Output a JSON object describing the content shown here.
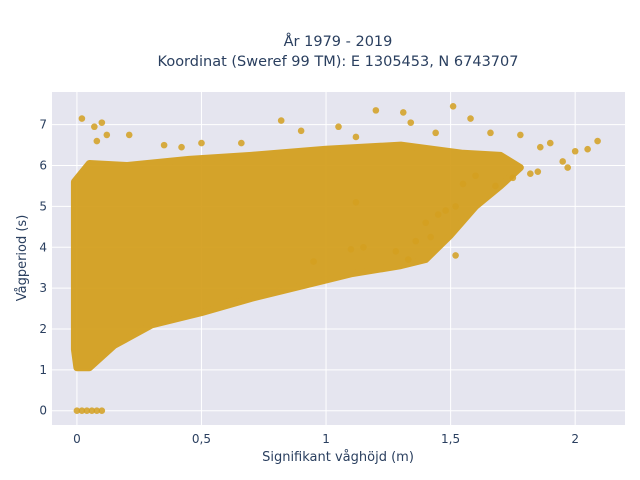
{
  "chart_data": {
    "type": "scatter",
    "title": "År 1979 - 2019",
    "subtitle": "Koordinat (Sweref 99 TM): E 1305453, N 6743707",
    "xlabel": "Signifikant våghöjd (m)",
    "ylabel": "Vågperiod (s)",
    "xlim": [
      -0.1,
      2.2
    ],
    "ylim": [
      -0.35,
      7.8
    ],
    "x_ticks": [
      0,
      0.5,
      1,
      1.5,
      2
    ],
    "x_tick_labels": [
      "0",
      "0,5",
      "1",
      "1,5",
      "2"
    ],
    "y_ticks": [
      0,
      1,
      2,
      3,
      4,
      5,
      6,
      7
    ],
    "y_tick_labels": [
      "0",
      "1",
      "2",
      "3",
      "4",
      "5",
      "6",
      "7"
    ],
    "grid": true,
    "marker_color": "#d4a020",
    "plot_background": "#e5e5ef",
    "series": [
      {
        "points": [
          [
            0.0,
            0.0
          ],
          [
            0.02,
            0.0
          ],
          [
            0.04,
            0.0
          ],
          [
            0.06,
            0.0
          ],
          [
            0.08,
            0.0
          ],
          [
            0.1,
            0.0
          ],
          [
            0.02,
            7.15
          ],
          [
            0.07,
            6.95
          ],
          [
            0.1,
            7.05
          ],
          [
            0.12,
            6.75
          ],
          [
            0.21,
            6.75
          ],
          [
            0.08,
            6.6
          ],
          [
            0.35,
            6.5
          ],
          [
            0.42,
            6.45
          ],
          [
            0.5,
            6.55
          ],
          [
            0.66,
            6.55
          ],
          [
            0.82,
            7.1
          ],
          [
            0.9,
            6.85
          ],
          [
            1.05,
            6.95
          ],
          [
            1.12,
            6.7
          ],
          [
            1.2,
            7.35
          ],
          [
            1.31,
            7.3
          ],
          [
            1.34,
            7.05
          ],
          [
            1.44,
            6.8
          ],
          [
            1.51,
            7.45
          ],
          [
            1.58,
            7.15
          ],
          [
            1.66,
            6.8
          ],
          [
            1.78,
            6.75
          ],
          [
            1.86,
            6.45
          ],
          [
            1.9,
            6.55
          ],
          [
            2.0,
            6.35
          ],
          [
            2.05,
            6.4
          ],
          [
            2.09,
            6.6
          ],
          [
            1.95,
            6.1
          ],
          [
            1.97,
            5.95
          ],
          [
            1.82,
            5.8
          ],
          [
            1.75,
            5.7
          ],
          [
            1.85,
            5.85
          ],
          [
            1.68,
            5.5
          ],
          [
            1.6,
            5.75
          ],
          [
            1.55,
            5.55
          ],
          [
            1.52,
            5.0
          ],
          [
            1.48,
            4.9
          ],
          [
            1.45,
            4.8
          ],
          [
            1.4,
            4.6
          ],
          [
            1.42,
            4.25
          ],
          [
            1.36,
            4.15
          ],
          [
            1.52,
            3.8
          ],
          [
            1.28,
            3.9
          ],
          [
            1.15,
            4.0
          ],
          [
            1.1,
            3.95
          ],
          [
            1.33,
            3.7
          ],
          [
            0.95,
            3.65
          ],
          [
            1.12,
            5.1
          ]
        ]
      }
    ]
  }
}
